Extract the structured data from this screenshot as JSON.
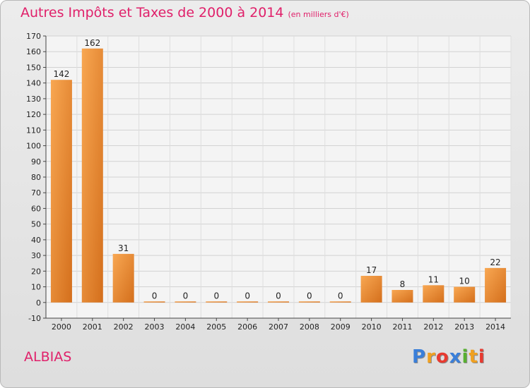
{
  "title": "Autres Impôts et Taxes de 2000 à 2014",
  "subtitle": "(en milliers d'€)",
  "city": "ALBIAS",
  "logo": "Proxiti",
  "colors": {
    "title": "#e0206a",
    "bar_light": "#f8a752",
    "bar_dark": "#d46f1c"
  },
  "chart_data": {
    "type": "bar",
    "title": "Autres Impôts et Taxes de 2000 à 2014",
    "subtitle": "(en milliers d'€)",
    "categories": [
      "2000",
      "2001",
      "2002",
      "2003",
      "2004",
      "2005",
      "2006",
      "2007",
      "2008",
      "2009",
      "2010",
      "2011",
      "2012",
      "2013",
      "2014"
    ],
    "values": [
      142,
      162,
      31,
      0,
      0,
      0,
      0,
      0,
      0,
      0,
      17,
      8,
      11,
      10,
      22
    ],
    "ylim": [
      -10,
      170
    ],
    "yticks": [
      -10,
      0,
      10,
      20,
      30,
      40,
      50,
      60,
      70,
      80,
      90,
      100,
      110,
      120,
      130,
      140,
      150,
      160,
      170
    ],
    "grid": true,
    "xlabel": "",
    "ylabel": ""
  }
}
